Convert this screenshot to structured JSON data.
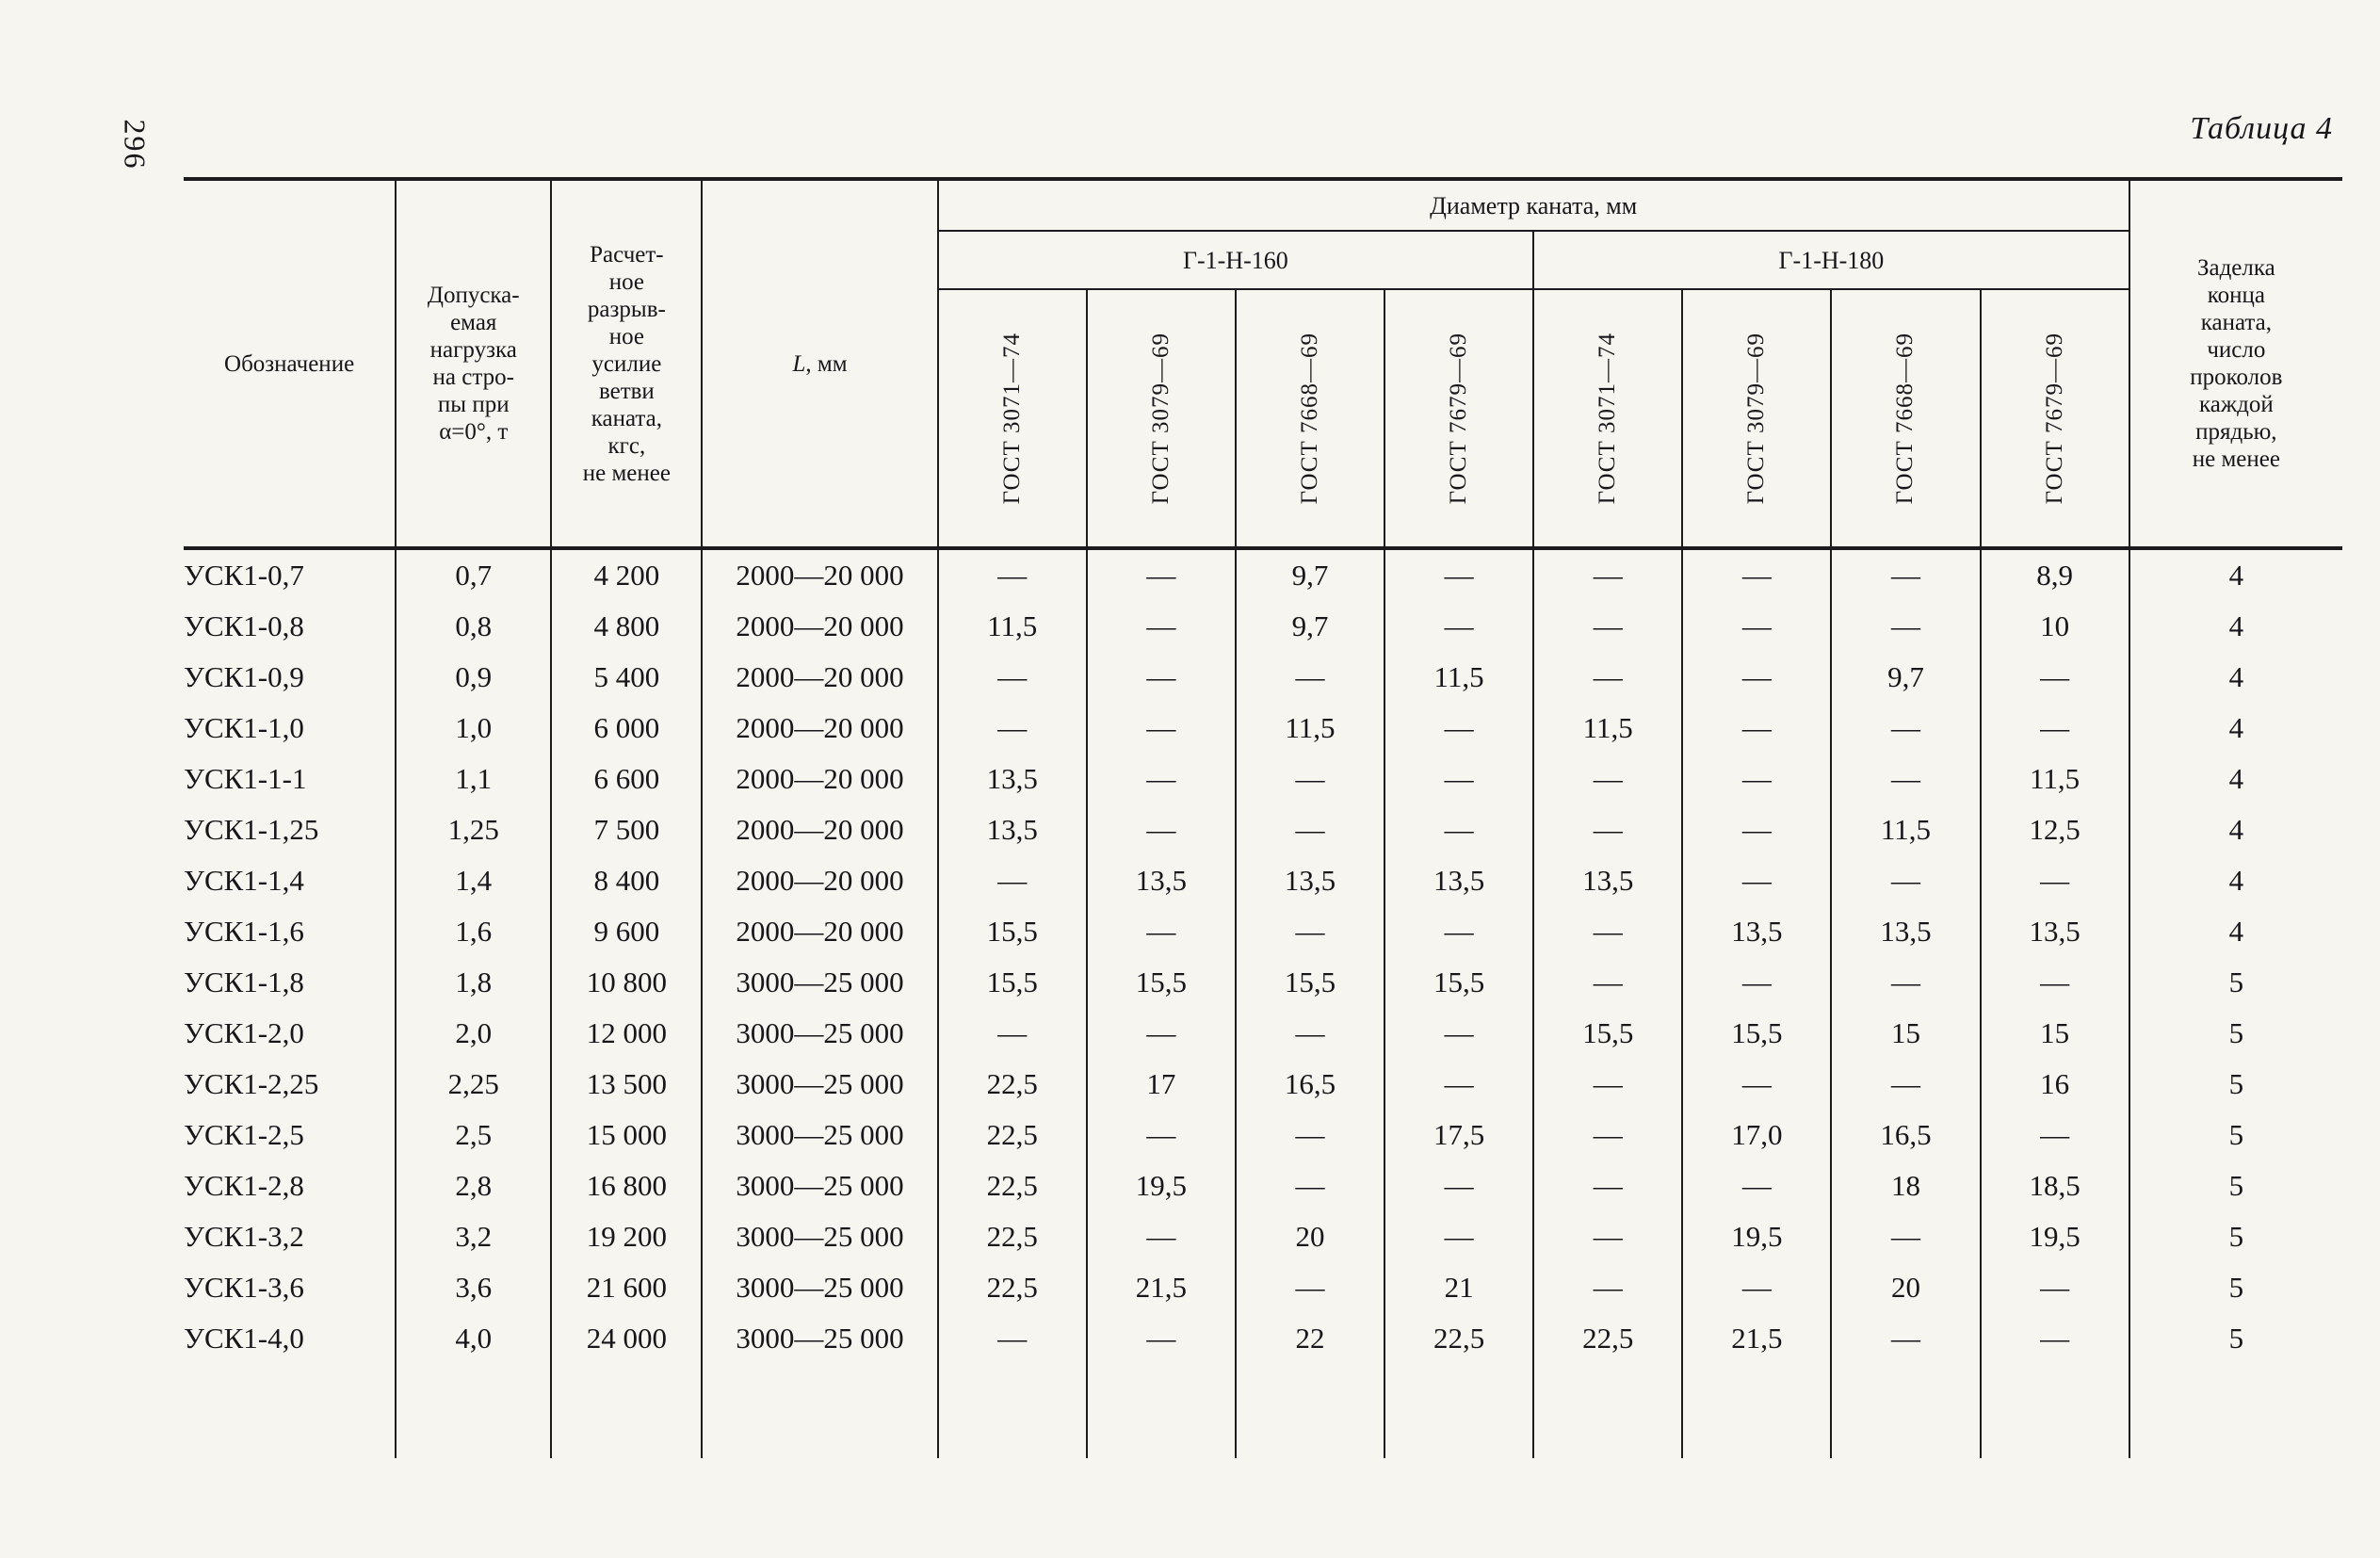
{
  "page": {
    "number": "296",
    "caption": "Таблица 4"
  },
  "table": {
    "col_designation": "Обозначение",
    "col_load": "Допуска-\nемая\nнагрузка\nна стро-\nпы при\nα=0°, т",
    "col_force": "Расчет-\nное\nразрыв-\nное\nусилие\nветви\nканата,\nкгс,\nне менее",
    "col_length_letter": "L",
    "col_length_rest": ", мм",
    "group_diameter": "Диаметр каната, мм",
    "subgroup_160": "Г-1-Н-160",
    "subgroup_180": "Г-1-Н-180",
    "gost_columns": [
      "ГОСТ 3071—74",
      "ГОСТ 3079—69",
      "ГОСТ 7668—69",
      "ГОСТ 7679—69"
    ],
    "col_seal": "Заделка\nконца\nканата,\nчисло\nпроколов\nкаждой\nпрядью,\nне менее",
    "rows": [
      [
        "УСК1-0,7",
        "0,7",
        "4 200",
        "2000—20 000",
        "—",
        "—",
        "9,7",
        "—",
        "—",
        "—",
        "—",
        "8,9",
        "4"
      ],
      [
        "УСК1-0,8",
        "0,8",
        "4 800",
        "2000—20 000",
        "11,5",
        "—",
        "9,7",
        "—",
        "—",
        "—",
        "—",
        "10",
        "4"
      ],
      [
        "УСК1-0,9",
        "0,9",
        "5 400",
        "2000—20 000",
        "—",
        "—",
        "—",
        "11,5",
        "—",
        "—",
        "9,7",
        "—",
        "4"
      ],
      [
        "УСК1-1,0",
        "1,0",
        "6 000",
        "2000—20 000",
        "—",
        "—",
        "11,5",
        "—",
        "11,5",
        "—",
        "—",
        "—",
        "4"
      ],
      [
        "УСК1-1-1",
        "1,1",
        "6 600",
        "2000—20 000",
        "13,5",
        "—",
        "—",
        "—",
        "—",
        "—",
        "—",
        "11,5",
        "4"
      ],
      [
        "УСК1-1,25",
        "1,25",
        "7 500",
        "2000—20 000",
        "13,5",
        "—",
        "—",
        "—",
        "—",
        "—",
        "11,5",
        "12,5",
        "4"
      ],
      [
        "УСК1-1,4",
        "1,4",
        "8 400",
        "2000—20 000",
        "—",
        "13,5",
        "13,5",
        "13,5",
        "13,5",
        "—",
        "—",
        "—",
        "4"
      ],
      [
        "УСК1-1,6",
        "1,6",
        "9 600",
        "2000—20 000",
        "15,5",
        "—",
        "—",
        "—",
        "—",
        "13,5",
        "13,5",
        "13,5",
        "4"
      ],
      [
        "УСК1-1,8",
        "1,8",
        "10 800",
        "3000—25 000",
        "15,5",
        "15,5",
        "15,5",
        "15,5",
        "—",
        "—",
        "—",
        "—",
        "5"
      ],
      [
        "УСК1-2,0",
        "2,0",
        "12 000",
        "3000—25 000",
        "—",
        "—",
        "—",
        "—",
        "15,5",
        "15,5",
        "15",
        "15",
        "5"
      ],
      [
        "УСК1-2,25",
        "2,25",
        "13 500",
        "3000—25 000",
        "22,5",
        "17",
        "16,5",
        "—",
        "—",
        "—",
        "—",
        "16",
        "5"
      ],
      [
        "УСК1-2,5",
        "2,5",
        "15 000",
        "3000—25 000",
        "22,5",
        "—",
        "—",
        "17,5",
        "—",
        "17,0",
        "16,5",
        "—",
        "5"
      ],
      [
        "УСК1-2,8",
        "2,8",
        "16 800",
        "3000—25 000",
        "22,5",
        "19,5",
        "—",
        "—",
        "—",
        "—",
        "18",
        "18,5",
        "5"
      ],
      [
        "УСК1-3,2",
        "3,2",
        "19 200",
        "3000—25 000",
        "22,5",
        "—",
        "20",
        "—",
        "—",
        "19,5",
        "—",
        "19,5",
        "5"
      ],
      [
        "УСК1-3,6",
        "3,6",
        "21 600",
        "3000—25 000",
        "22,5",
        "21,5",
        "—",
        "21",
        "—",
        "—",
        "20",
        "—",
        "5"
      ],
      [
        "УСК1-4,0",
        "4,0",
        "24 000",
        "3000—25 000",
        "—",
        "—",
        "22",
        "22,5",
        "22,5",
        "21,5",
        "—",
        "—",
        "5"
      ]
    ]
  }
}
